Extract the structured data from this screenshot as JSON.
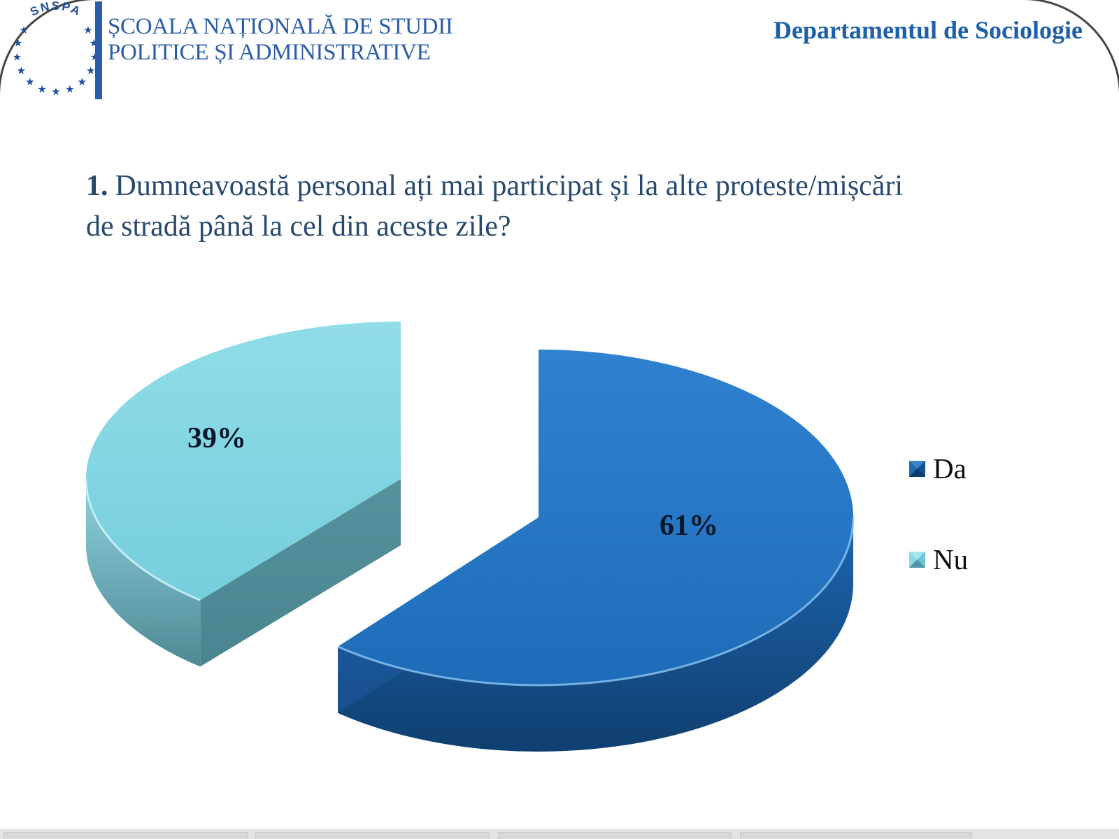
{
  "header": {
    "logo_text": "SNSPA",
    "org_line1": "ȘCOALA NAȚIONALĂ DE STUDII",
    "org_line2": "POLITICE ȘI ADMINISTRATIVE",
    "department": "Departamentul de Sociologie",
    "brand_blue": "#2A5CA8",
    "department_blue": "#1E5FA9",
    "logo_blue": "#1F4E9C"
  },
  "question": {
    "number": "1.",
    "line1": "Dumneavoastă personal ați mai participat și la alte proteste/mișcări",
    "line2": "de stradă până la cel din aceste zile?",
    "text_color": "#28496E"
  },
  "chart_data": {
    "type": "pie",
    "style": "3d-exploded",
    "title": "",
    "start_angle_deg": 0,
    "direction": "clockwise",
    "legend_position": "right",
    "label_color": "#0A1629",
    "legend_text_color": "#101010",
    "slices": [
      {
        "name": "Da",
        "value": 61,
        "label": "61%",
        "colors": {
          "top": [
            "#2F82D0",
            "#1E6CB8"
          ],
          "rim": [
            "#1D66AF",
            "#0F3F70"
          ],
          "cut": [
            "#1E66B0",
            "#174F8E"
          ],
          "highlight": "#8CC6F2"
        },
        "legend_facets": [
          "#3F86C9",
          "#15508F",
          "#0C3B6C",
          "#2368B2"
        ]
      },
      {
        "name": "Nu",
        "value": 39,
        "label": "39%",
        "colors": {
          "top": [
            "#90DDE8",
            "#76CEDD"
          ],
          "rim": [
            "#8FD2DE",
            "#4E8A94"
          ],
          "cut": [
            "#55929C",
            "#4A8490"
          ],
          "highlight": "#D6F6FA"
        },
        "legend_facets": [
          "#A9E6EF",
          "#6FC4D6",
          "#4F96A8",
          "#8AD7E4"
        ]
      }
    ]
  }
}
